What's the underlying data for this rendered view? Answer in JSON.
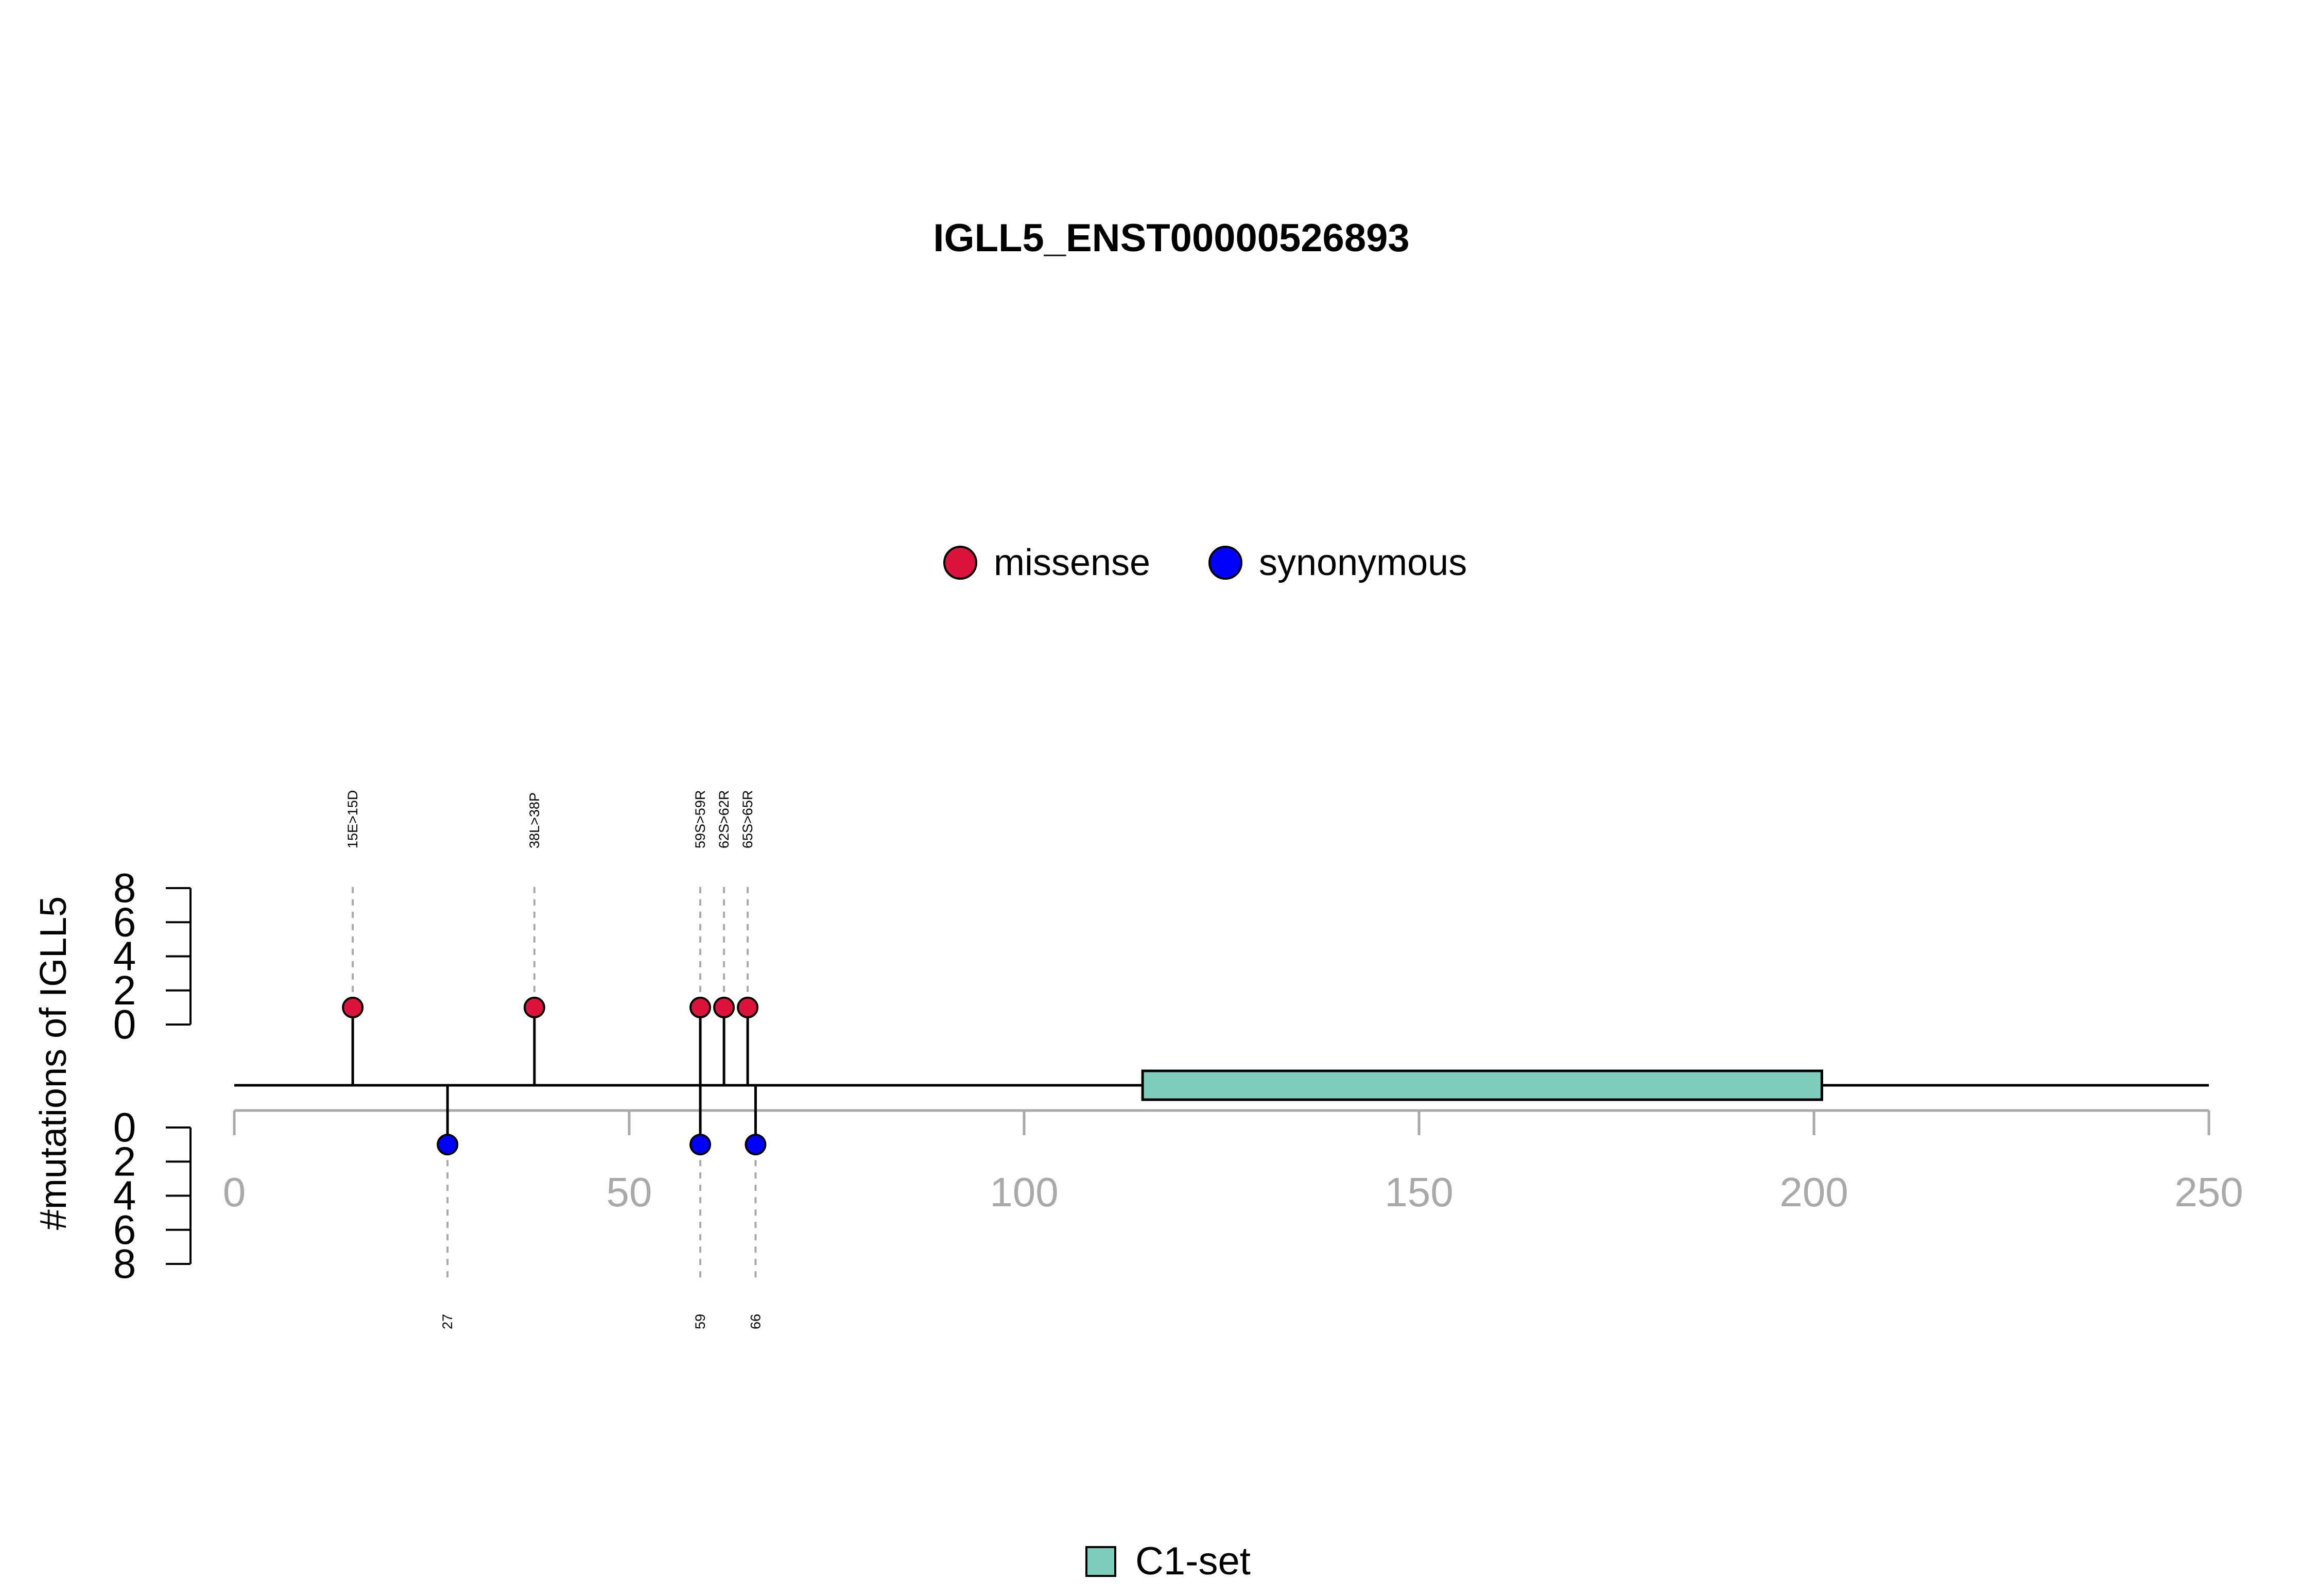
{
  "chart_data": {
    "type": "lollipop",
    "title": "IGLL5_ENST00000526893",
    "ylabel": "#mutations of IGLL5",
    "xlim": [
      0,
      250
    ],
    "x_ticks": [
      "0",
      "50",
      "100",
      "150",
      "200",
      "250"
    ],
    "y_ticks": [
      "0",
      "2",
      "4",
      "6",
      "8"
    ],
    "ylim": [
      0,
      8
    ],
    "legend": [
      {
        "name": "missense",
        "color": "#DC143C"
      },
      {
        "name": "synonymous",
        "color": "#0000FF"
      }
    ],
    "top_mutations": [
      {
        "position": 15,
        "count": 1,
        "type": "missense",
        "label": "15E>15D"
      },
      {
        "position": 38,
        "count": 1,
        "type": "missense",
        "label": "38L>38P"
      },
      {
        "position": 59,
        "count": 1,
        "type": "missense",
        "label": "59S>59R"
      },
      {
        "position": 62,
        "count": 1,
        "type": "missense",
        "label": "62S>62R"
      },
      {
        "position": 65,
        "count": 1,
        "type": "missense",
        "label": "65S>65R"
      }
    ],
    "bottom_mutations": [
      {
        "position": 27,
        "count": 1,
        "type": "synonymous",
        "label": "27"
      },
      {
        "position": 59,
        "count": 1,
        "type": "synonymous",
        "label": "59"
      },
      {
        "position": 66,
        "count": 1,
        "type": "synonymous",
        "label": "66"
      }
    ],
    "domains": [
      {
        "name": "C1-set",
        "start": 115,
        "end": 201,
        "color": "#7FCDBB"
      }
    ],
    "domain_legend": [
      {
        "name": "C1-set",
        "color": "#7FCDBB"
      }
    ]
  }
}
